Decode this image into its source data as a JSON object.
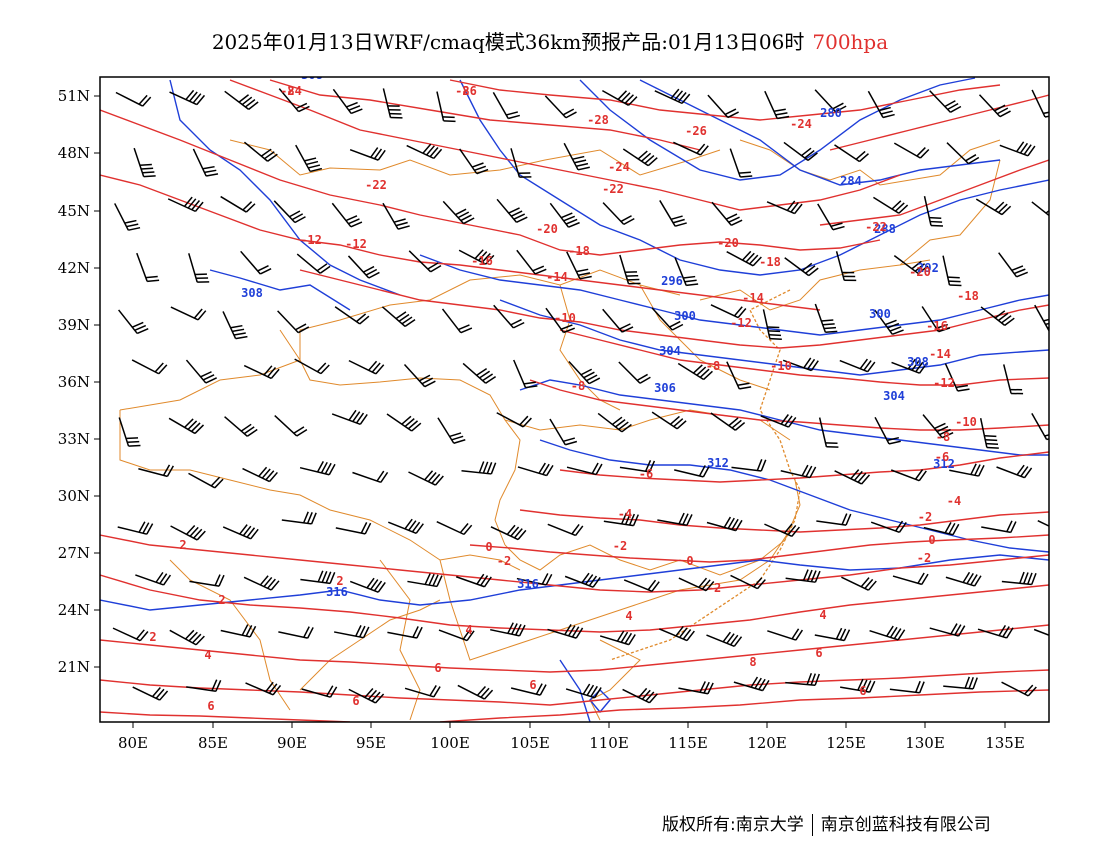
{
  "header": {
    "title": "2025年01月13日WRF/cmaq模式36km预报产品:01月13日06时",
    "level": "700hpa"
  },
  "map": {
    "lon_labels": [
      "80E",
      "85E",
      "90E",
      "95E",
      "100E",
      "105E",
      "110E",
      "115E",
      "120E",
      "125E",
      "130E",
      "135E"
    ],
    "lat_labels": [
      "51N",
      "48N",
      "45N",
      "42N",
      "39N",
      "36N",
      "33N",
      "30N",
      "27N",
      "24N",
      "21N"
    ],
    "height_contour_color": "#1f3fd8",
    "temperature_contour_color": "#e0312f",
    "boundary_color": "#e08a2c",
    "height_labels": [
      "308",
      "308",
      "280",
      "284",
      "288",
      "292",
      "296",
      "300",
      "300",
      "304",
      "304",
      "306",
      "308",
      "312",
      "312",
      "316",
      "316"
    ],
    "temperature_labels": [
      "-24",
      "-26",
      "-28",
      "-26",
      "-24",
      "-24",
      "-22",
      "-22",
      "-22",
      "-20",
      "-20",
      "-20",
      "-18",
      "-18",
      "-18",
      "-16",
      "-16",
      "-14",
      "-14",
      "-14",
      "-12",
      "-12",
      "-12",
      "-12",
      "-10",
      "-10",
      "-10",
      "-8",
      "-8",
      "-8",
      "-6",
      "-6",
      "-4",
      "-4",
      "-2",
      "-2",
      "-2",
      "-2",
      "-2",
      "0",
      "0",
      "0",
      "2",
      "2",
      "2",
      "2",
      "4",
      "4",
      "4",
      "4",
      "6",
      "6",
      "6",
      "6",
      "6",
      "6",
      "8",
      "8",
      "8"
    ]
  },
  "footer": {
    "copyright": "版权所有:南京大学",
    "company": "南京创蓝科技有限公司"
  }
}
